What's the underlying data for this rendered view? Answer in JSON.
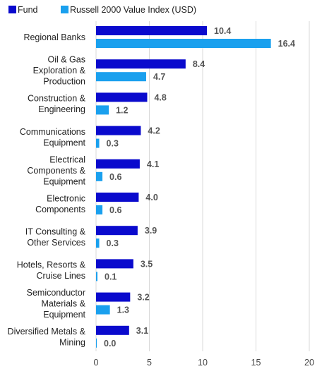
{
  "chart_data": {
    "type": "bar",
    "orientation": "horizontal",
    "categories": [
      [
        "Regional Banks"
      ],
      [
        "Oil & Gas",
        "Exploration &",
        "Production"
      ],
      [
        "Construction &",
        "Engineering"
      ],
      [
        "Communications",
        "Equipment"
      ],
      [
        "Electrical",
        "Components &",
        "Equipment"
      ],
      [
        "Electronic",
        "Components"
      ],
      [
        "IT Consulting &",
        "Other Services"
      ],
      [
        "Hotels, Resorts &",
        "Cruise Lines"
      ],
      [
        "Semiconductor",
        "Materials &",
        "Equipment"
      ],
      [
        "Diversified Metals &",
        "Mining"
      ]
    ],
    "series": [
      {
        "name": "Fund",
        "color": "#0a0acd",
        "values": [
          10.4,
          8.4,
          4.8,
          4.2,
          4.1,
          4.0,
          3.9,
          3.5,
          3.2,
          3.1
        ],
        "labels": [
          "10.4",
          "8.4",
          "4.8",
          "4.2",
          "4.1",
          "4.0",
          "3.9",
          "3.5",
          "3.2",
          "3.1"
        ]
      },
      {
        "name": "Russell 2000 Value Index (USD)",
        "color": "#1aa0ee",
        "values": [
          16.4,
          4.7,
          1.2,
          0.3,
          0.6,
          0.6,
          0.3,
          0.1,
          1.3,
          0.0
        ],
        "labels": [
          "16.4",
          "4.7",
          "1.2",
          "0.3",
          "0.6",
          "0.6",
          "0.3",
          "0.1",
          "1.3",
          "0.0"
        ]
      }
    ],
    "xlim": [
      0,
      20
    ],
    "xticks": [
      "0",
      "5",
      "10",
      "15",
      "20"
    ],
    "xtick_values": [
      0,
      5,
      10,
      15,
      20
    ],
    "grid": true,
    "legend_position": "top-left"
  }
}
